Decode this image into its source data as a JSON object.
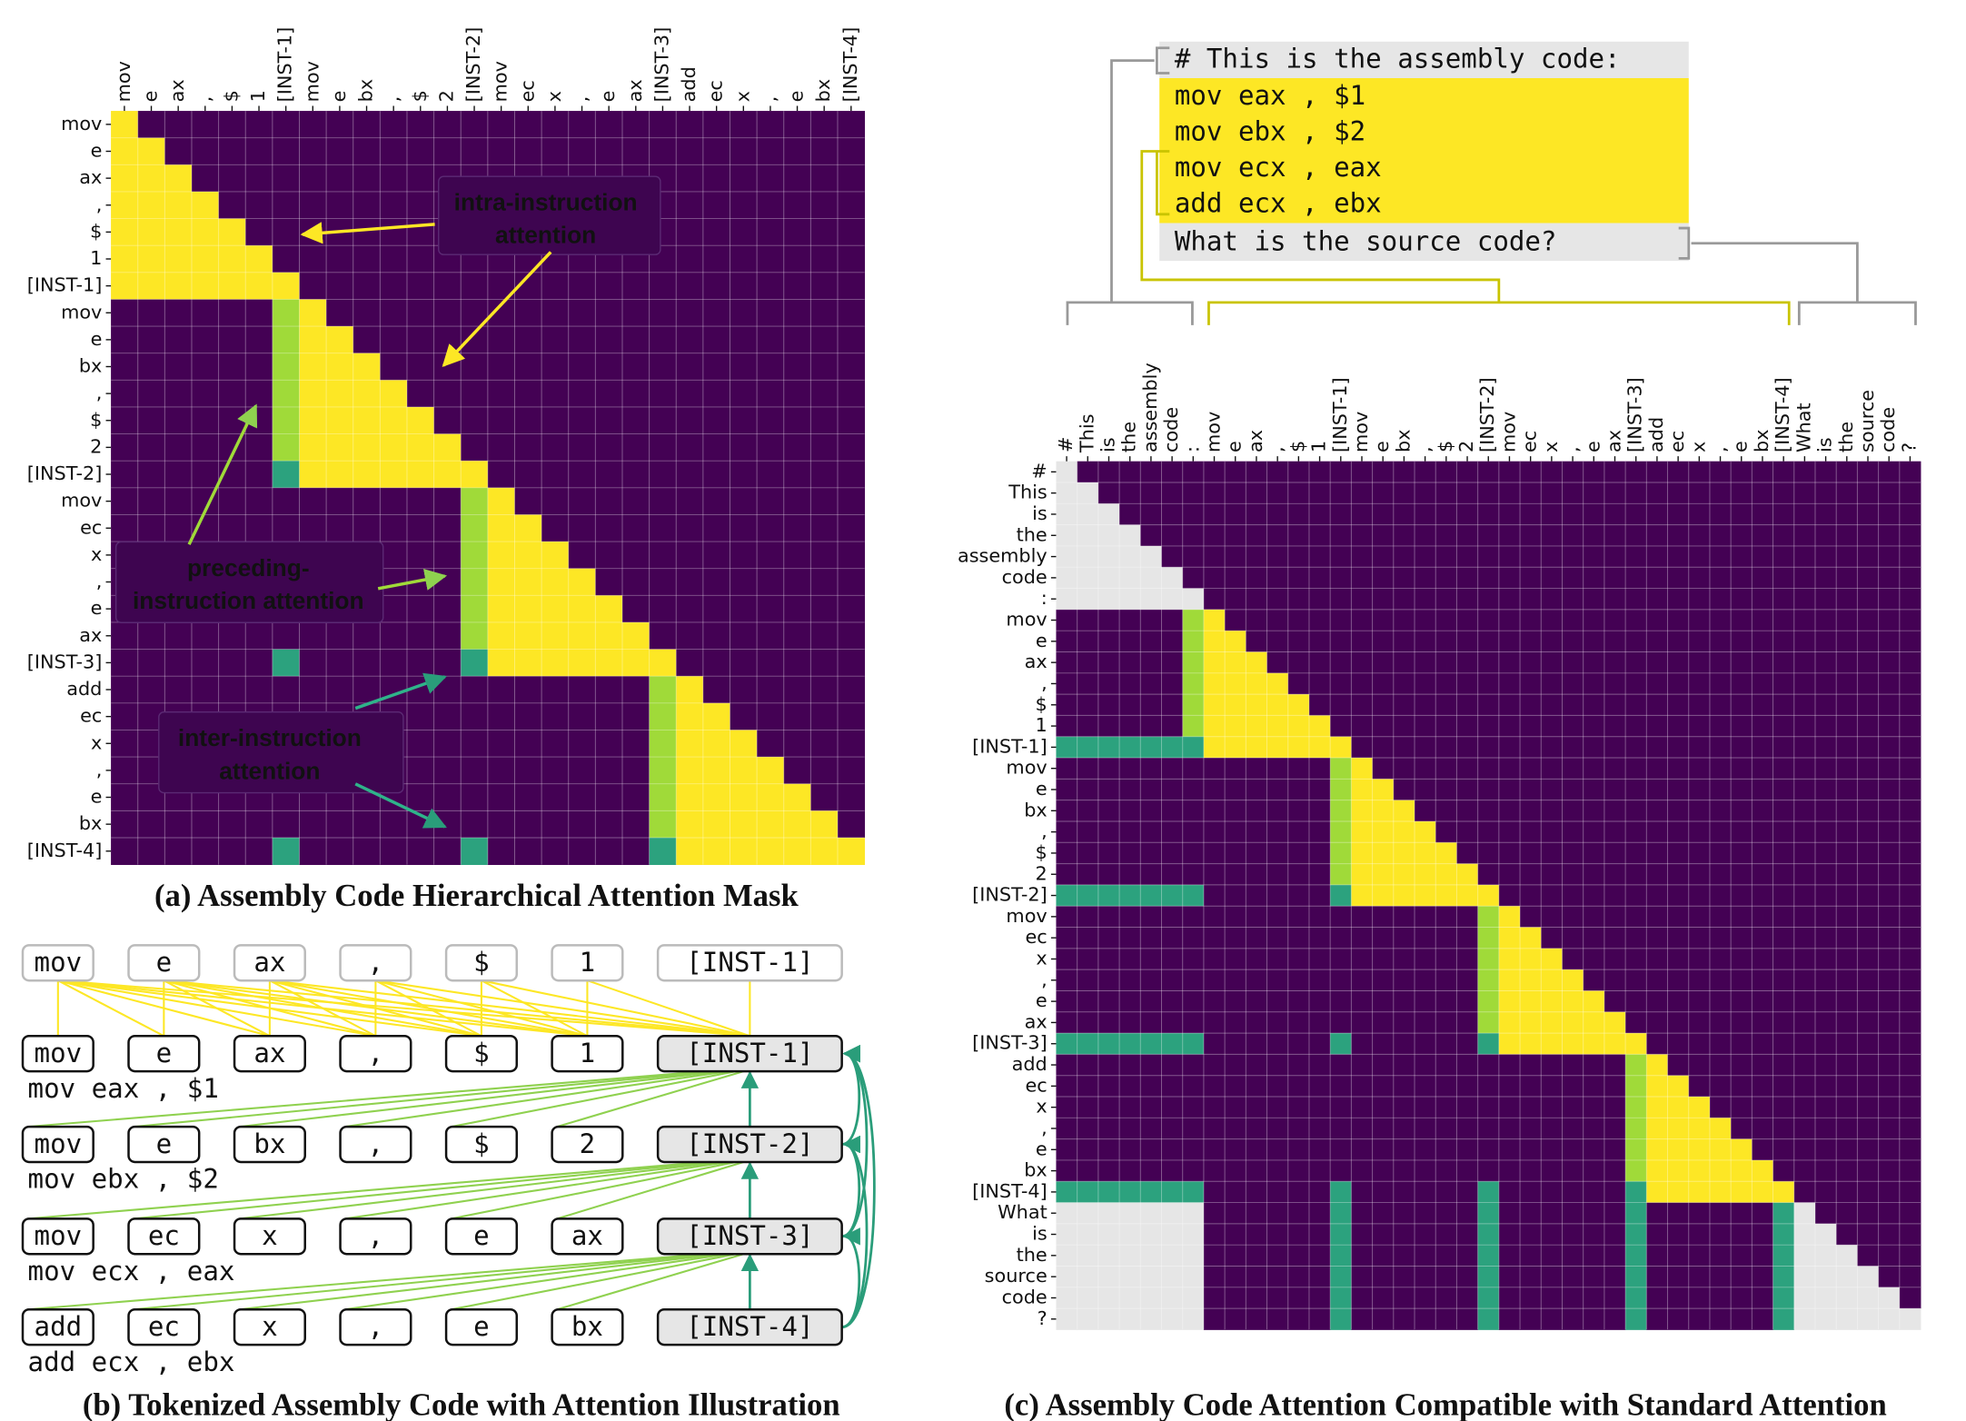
{
  "asm_tokens": [
    "mov",
    "e",
    "ax",
    ",",
    "$",
    "1",
    "[INST-1]",
    "mov",
    "e",
    "bx",
    ",",
    "$",
    "2",
    "[INST-2]",
    "mov",
    "ec",
    "x",
    ",",
    "e",
    "ax",
    "[INST-3]",
    "add",
    "ec",
    "x",
    ",",
    "e",
    "bx",
    "[INST-4]"
  ],
  "code_lines": [
    "mov eax , $1",
    "mov ebx , $2",
    "mov ecx , eax",
    "add ecx , ebx"
  ],
  "panel_a": {
    "caption": "(a) Assembly Code Hierarchical Attention Mask",
    "annotations": [
      {
        "lines": [
          "intra-instruction",
          "attention"
        ]
      },
      {
        "lines": [
          "preceding-",
          "instruction attention"
        ]
      },
      {
        "lines": [
          "inter-instruction",
          "attention"
        ]
      }
    ]
  },
  "panel_b": {
    "caption": "(b) Tokenized Assembly Code with Attention Illustration"
  },
  "panel_c": {
    "caption": "(c) Assembly Code Attention Compatible with Standard Attention",
    "prompt_header": "# This is the assembly code:",
    "prompt_footer": "What is the source code?",
    "prefix_tokens": [
      "#",
      "This",
      "is",
      "the",
      "assembly",
      "code",
      ":"
    ],
    "suffix_tokens": [
      "What",
      "is",
      "the",
      "source",
      "code",
      "?"
    ]
  }
}
